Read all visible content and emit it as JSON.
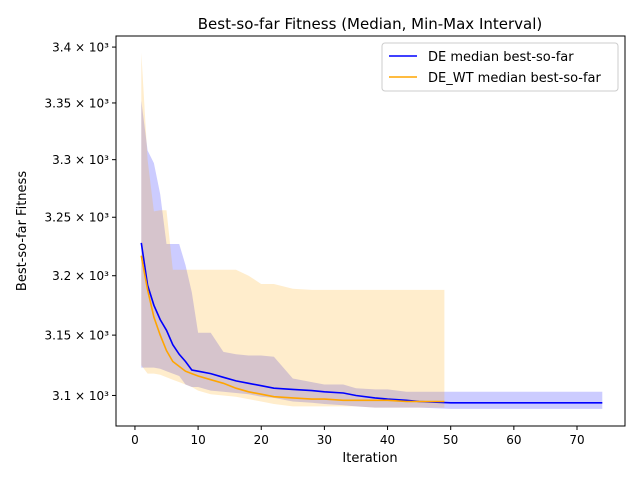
{
  "chart_data": {
    "type": "line",
    "title": "Best-so-far Fitness (Median, Min-Max Interval)",
    "xlabel": "Iteration",
    "ylabel": "Best-so-far Fitness",
    "xlim": [
      -3,
      77.6
    ],
    "ylim": [
      3075,
      3410
    ],
    "y_scale": "log",
    "x_ticks": [
      {
        "value": 0,
        "label": "0"
      },
      {
        "value": 10,
        "label": "10"
      },
      {
        "value": 20,
        "label": "20"
      },
      {
        "value": 30,
        "label": "30"
      },
      {
        "value": 40,
        "label": "40"
      },
      {
        "value": 50,
        "label": "50"
      },
      {
        "value": 60,
        "label": "60"
      },
      {
        "value": 70,
        "label": "70"
      }
    ],
    "y_ticks": [
      {
        "value": 3100,
        "label": "3.1 × 10³"
      },
      {
        "value": 3150,
        "label": "3.15 × 10³"
      },
      {
        "value": 3200,
        "label": "3.2 × 10³"
      },
      {
        "value": 3250,
        "label": "3.25 × 10³"
      },
      {
        "value": 3300,
        "label": "3.3 × 10³"
      },
      {
        "value": 3350,
        "label": "3.35 × 10³"
      },
      {
        "value": 3400,
        "label": "3.4 × 10³"
      }
    ],
    "legend_position": "top-right",
    "series": [
      {
        "name": "DE median best-so-far",
        "color": "#0000ff",
        "band_color": "#0000ff",
        "x": [
          1,
          2,
          3,
          4,
          5,
          6,
          7,
          8,
          9,
          10,
          12,
          14,
          16,
          18,
          20,
          22,
          25,
          28,
          30,
          33,
          35,
          38,
          40,
          43,
          45,
          50,
          55,
          60,
          65,
          70,
          74
        ],
        "median": [
          3228,
          3192,
          3175,
          3163,
          3154,
          3142,
          3134,
          3128,
          3121,
          3120,
          3118,
          3115,
          3112,
          3110,
          3108,
          3106,
          3105,
          3104,
          3103,
          3102,
          3100,
          3098,
          3097,
          3096,
          3095,
          3094,
          3094,
          3094,
          3094,
          3094,
          3094
        ],
        "min": [
          3123,
          3123,
          3123,
          3122,
          3120,
          3118,
          3116,
          3109,
          3107,
          3107,
          3104,
          3103,
          3102,
          3101,
          3099,
          3098,
          3095,
          3094,
          3093,
          3092,
          3091,
          3090,
          3090,
          3090,
          3090,
          3089,
          3089,
          3089,
          3089,
          3089,
          3089
        ],
        "max": [
          3352,
          3308,
          3297,
          3270,
          3227,
          3227,
          3227,
          3209,
          3186,
          3152,
          3152,
          3136,
          3134,
          3133,
          3133,
          3132,
          3114,
          3111,
          3109,
          3109,
          3106,
          3105,
          3105,
          3103,
          3103,
          3103,
          3103,
          3103,
          3103,
          3103,
          3103
        ]
      },
      {
        "name": "DE_WT median best-so-far",
        "color": "#ffa500",
        "band_color": "#ffa500",
        "x": [
          1,
          2,
          3,
          4,
          5,
          6,
          7,
          8,
          9,
          10,
          12,
          14,
          16,
          18,
          20,
          22,
          25,
          28,
          30,
          33,
          35,
          38,
          40,
          43,
          45,
          49
        ],
        "median": [
          3217,
          3188,
          3165,
          3150,
          3137,
          3128,
          3124,
          3120,
          3118,
          3116,
          3113,
          3110,
          3106,
          3103,
          3101,
          3099,
          3098,
          3097,
          3097,
          3096,
          3096,
          3096,
          3096,
          3095,
          3095,
          3095
        ],
        "min": [
          3125,
          3118,
          3118,
          3117,
          3115,
          3113,
          3111,
          3109,
          3107,
          3104,
          3101,
          3100,
          3099,
          3097,
          3095,
          3093,
          3091,
          3091,
          3091,
          3091,
          3091,
          3090,
          3090,
          3090,
          3090,
          3090
        ],
        "max": [
          3395,
          3300,
          3255,
          3256,
          3256,
          3205,
          3205,
          3205,
          3205,
          3205,
          3205,
          3205,
          3205,
          3200,
          3193,
          3193,
          3189,
          3188,
          3188,
          3188,
          3188,
          3188,
          3188,
          3188,
          3188,
          3188
        ]
      }
    ]
  }
}
